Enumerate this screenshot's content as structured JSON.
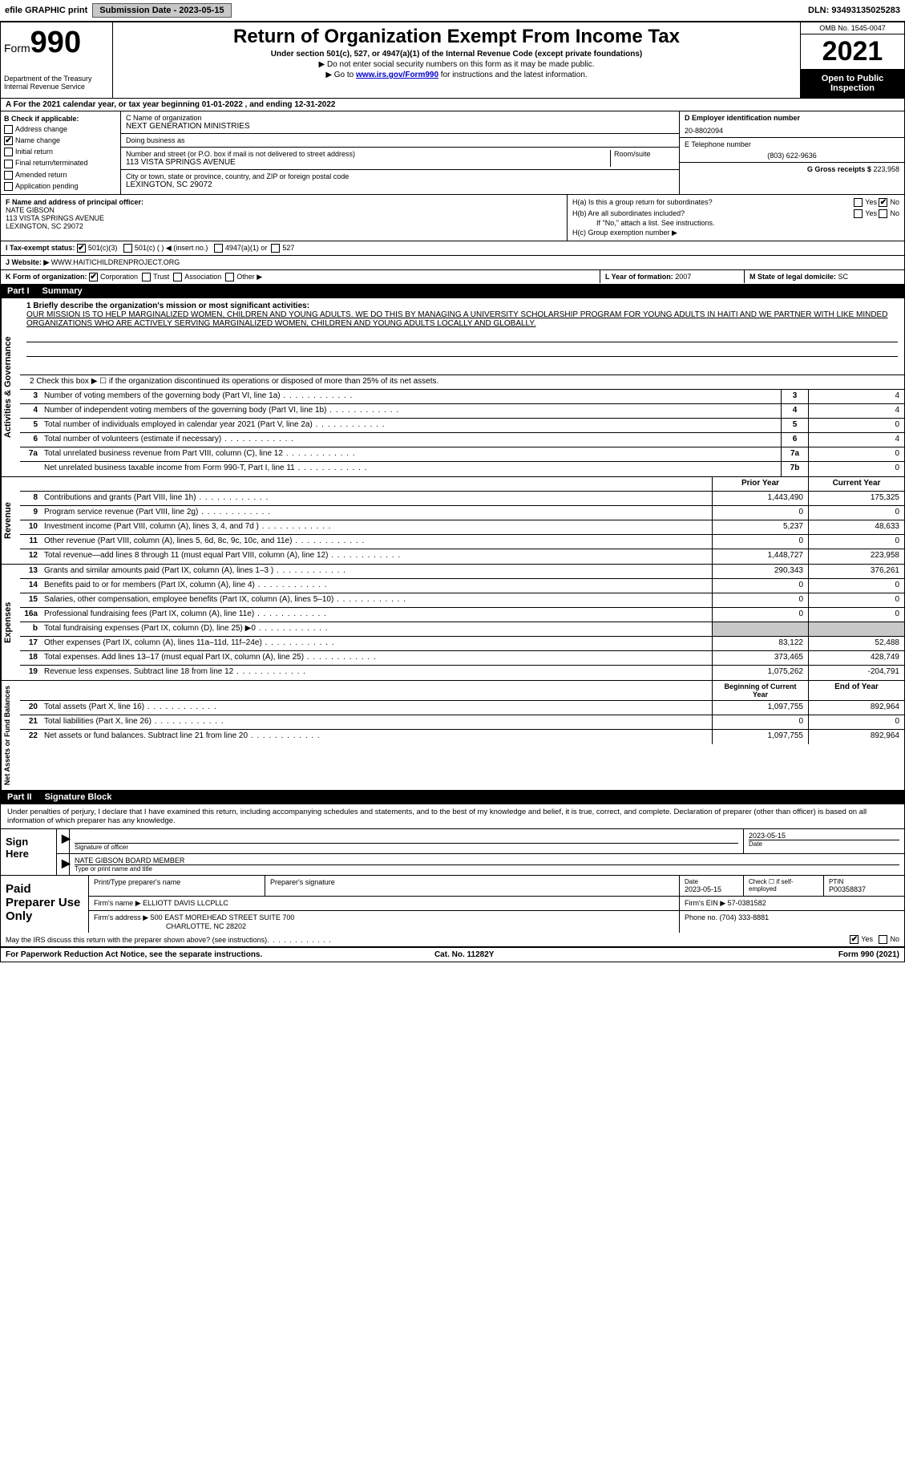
{
  "topbar": {
    "efile_label": "efile GRAPHIC print",
    "submission_label": "Submission Date - 2023-05-15",
    "dln_label": "DLN: 93493135025283"
  },
  "header": {
    "form_word": "Form",
    "form_number": "990",
    "dept": "Department of the Treasury",
    "irs": "Internal Revenue Service",
    "title": "Return of Organization Exempt From Income Tax",
    "subtitle": "Under section 501(c), 527, or 4947(a)(1) of the Internal Revenue Code (except private foundations)",
    "note1": "▶ Do not enter social security numbers on this form as it may be made public.",
    "note2_pre": "▶ Go to ",
    "note2_link": "www.irs.gov/Form990",
    "note2_post": " for instructions and the latest information.",
    "omb": "OMB No. 1545-0047",
    "year": "2021",
    "inspect": "Open to Public Inspection"
  },
  "row_a": "A For the 2021 calendar year, or tax year beginning 01-01-2022   , and ending 12-31-2022",
  "box_b": {
    "title": "B Check if applicable:",
    "items": [
      {
        "label": "Address change",
        "checked": false
      },
      {
        "label": "Name change",
        "checked": true
      },
      {
        "label": "Initial return",
        "checked": false
      },
      {
        "label": "Final return/terminated",
        "checked": false
      },
      {
        "label": "Amended return",
        "checked": false
      },
      {
        "label": "Application pending",
        "checked": false
      }
    ]
  },
  "box_c": {
    "name_label": "C Name of organization",
    "name": "NEXT GENERATION MINISTRIES",
    "dba_label": "Doing business as",
    "dba": "",
    "street_label": "Number and street (or P.O. box if mail is not delivered to street address)",
    "room_label": "Room/suite",
    "street": "113 VISTA SPRINGS AVENUE",
    "city_label": "City or town, state or province, country, and ZIP or foreign postal code",
    "city": "LEXINGTON, SC  29072"
  },
  "box_d": {
    "label": "D Employer identification number",
    "value": "20-8802094"
  },
  "box_e": {
    "label": "E Telephone number",
    "value": "(803) 622-9636"
  },
  "box_g": {
    "label": "G Gross receipts $",
    "value": "223,958"
  },
  "box_f": {
    "label": "F Name and address of principal officer:",
    "name": "NATE GIBSON",
    "street": "113 VISTA SPRINGS AVENUE",
    "city": "LEXINGTON, SC  29072"
  },
  "box_h": {
    "a_label": "H(a)  Is this a group return for subordinates?",
    "a_yes": "Yes",
    "a_no": "No",
    "b_label": "H(b)  Are all subordinates included?",
    "b_yes": "Yes",
    "b_no": "No",
    "b_note": "If \"No,\" attach a list. See instructions.",
    "c_label": "H(c)  Group exemption number ▶"
  },
  "row_i": {
    "label": "I  Tax-exempt status:",
    "opts": [
      "501(c)(3)",
      "501(c) (  ) ◀ (insert no.)",
      "4947(a)(1) or",
      "527"
    ]
  },
  "row_j": {
    "label": "J  Website: ▶",
    "value": "WWW.HAITICHILDRENPROJECT.ORG"
  },
  "row_k": {
    "label": "K Form of organization:",
    "opts": [
      "Corporation",
      "Trust",
      "Association",
      "Other ▶"
    ]
  },
  "row_l": {
    "label": "L Year of formation:",
    "value": "2007"
  },
  "row_m": {
    "label": "M State of legal domicile:",
    "value": "SC"
  },
  "parts": {
    "p1": {
      "num": "Part I",
      "title": "Summary"
    },
    "p2": {
      "num": "Part II",
      "title": "Signature Block"
    }
  },
  "summary": {
    "q1_label": "1  Briefly describe the organization's mission or most significant activities:",
    "q1_text": "OUR MISSION IS TO HELP MARGINALIZED WOMEN, CHILDREN AND YOUNG ADULTS. WE DO THIS BY MANAGING A UNIVERSITY SCHOLARSHIP PROGRAM FOR YOUNG ADULTS IN HAITI AND WE PARTNER WITH LIKE MINDED ORGANIZATIONS WHO ARE ACTIVELY SERVING MARGINALIZED WOMEN, CHILDREN AND YOUNG ADULTS LOCALLY AND GLOBALLY.",
    "q2": "2   Check this box ▶ ☐  if the organization discontinued its operations or disposed of more than 25% of its net assets.",
    "rows_gov": [
      {
        "n": "3",
        "d": "Number of voting members of the governing body (Part VI, line 1a)",
        "box": "3",
        "v": "4"
      },
      {
        "n": "4",
        "d": "Number of independent voting members of the governing body (Part VI, line 1b)",
        "box": "4",
        "v": "4"
      },
      {
        "n": "5",
        "d": "Total number of individuals employed in calendar year 2021 (Part V, line 2a)",
        "box": "5",
        "v": "0"
      },
      {
        "n": "6",
        "d": "Total number of volunteers (estimate if necessary)",
        "box": "6",
        "v": "4"
      },
      {
        "n": "7a",
        "d": "Total unrelated business revenue from Part VIII, column (C), line 12",
        "box": "7a",
        "v": "0"
      },
      {
        "n": "",
        "d": "Net unrelated business taxable income from Form 990-T, Part I, line 11",
        "box": "7b",
        "v": "0"
      }
    ],
    "col_prior": "Prior Year",
    "col_current": "Current Year",
    "rows_rev": [
      {
        "n": "8",
        "d": "Contributions and grants (Part VIII, line 1h)",
        "p": "1,443,490",
        "c": "175,325"
      },
      {
        "n": "9",
        "d": "Program service revenue (Part VIII, line 2g)",
        "p": "0",
        "c": "0"
      },
      {
        "n": "10",
        "d": "Investment income (Part VIII, column (A), lines 3, 4, and 7d )",
        "p": "5,237",
        "c": "48,633"
      },
      {
        "n": "11",
        "d": "Other revenue (Part VIII, column (A), lines 5, 6d, 8c, 9c, 10c, and 11e)",
        "p": "0",
        "c": "0"
      },
      {
        "n": "12",
        "d": "Total revenue—add lines 8 through 11 (must equal Part VIII, column (A), line 12)",
        "p": "1,448,727",
        "c": "223,958"
      }
    ],
    "rows_exp": [
      {
        "n": "13",
        "d": "Grants and similar amounts paid (Part IX, column (A), lines 1–3 )",
        "p": "290,343",
        "c": "376,261"
      },
      {
        "n": "14",
        "d": "Benefits paid to or for members (Part IX, column (A), line 4)",
        "p": "0",
        "c": "0"
      },
      {
        "n": "15",
        "d": "Salaries, other compensation, employee benefits (Part IX, column (A), lines 5–10)",
        "p": "0",
        "c": "0"
      },
      {
        "n": "16a",
        "d": "Professional fundraising fees (Part IX, column (A), line 11e)",
        "p": "0",
        "c": "0"
      },
      {
        "n": "b",
        "d": "Total fundraising expenses (Part IX, column (D), line 25) ▶0",
        "p": "",
        "c": "",
        "shade": true
      },
      {
        "n": "17",
        "d": "Other expenses (Part IX, column (A), lines 11a–11d, 11f–24e)",
        "p": "83,122",
        "c": "52,488"
      },
      {
        "n": "18",
        "d": "Total expenses. Add lines 13–17 (must equal Part IX, column (A), line 25)",
        "p": "373,465",
        "c": "428,749"
      },
      {
        "n": "19",
        "d": "Revenue less expenses. Subtract line 18 from line 12",
        "p": "1,075,262",
        "c": "-204,791"
      }
    ],
    "col_begin": "Beginning of Current Year",
    "col_end": "End of Year",
    "rows_net": [
      {
        "n": "20",
        "d": "Total assets (Part X, line 16)",
        "p": "1,097,755",
        "c": "892,964"
      },
      {
        "n": "21",
        "d": "Total liabilities (Part X, line 26)",
        "p": "0",
        "c": "0"
      },
      {
        "n": "22",
        "d": "Net assets or fund balances. Subtract line 21 from line 20",
        "p": "1,097,755",
        "c": "892,964"
      }
    ],
    "side_gov": "Activities & Governance",
    "side_rev": "Revenue",
    "side_exp": "Expenses",
    "side_net": "Net Assets or Fund Balances"
  },
  "sig": {
    "intro": "Under penalties of perjury, I declare that I have examined this return, including accompanying schedules and statements, and to the best of my knowledge and belief, it is true, correct, and complete. Declaration of preparer (other than officer) is based on all information of which preparer has any knowledge.",
    "sign_here": "Sign Here",
    "sig_officer": "Signature of officer",
    "date": "Date",
    "date_val": "2023-05-15",
    "name_title": "NATE GIBSON  BOARD MEMBER",
    "type_name": "Type or print name and title",
    "paid": "Paid Preparer Use Only",
    "prep_name_lbl": "Print/Type preparer's name",
    "prep_sig_lbl": "Preparer's signature",
    "prep_date": "2023-05-15",
    "check_if": "Check ☐ if self-employed",
    "ptin_lbl": "PTIN",
    "ptin": "P00358837",
    "firm_name_lbl": "Firm's name   ▶",
    "firm_name": "ELLIOTT DAVIS LLCPLLC",
    "firm_ein_lbl": "Firm's EIN ▶",
    "firm_ein": "57-0381582",
    "firm_addr_lbl": "Firm's address ▶",
    "firm_addr1": "500 EAST MOREHEAD STREET SUITE 700",
    "firm_addr2": "CHARLOTTE, NC  28202",
    "phone_lbl": "Phone no.",
    "phone": "(704) 333-8881",
    "may_irs": "May the IRS discuss this return with the preparer shown above? (see instructions)",
    "yes": "Yes",
    "no": "No"
  },
  "footer": {
    "left": "For Paperwork Reduction Act Notice, see the separate instructions.",
    "mid": "Cat. No. 11282Y",
    "right": "Form 990 (2021)"
  }
}
